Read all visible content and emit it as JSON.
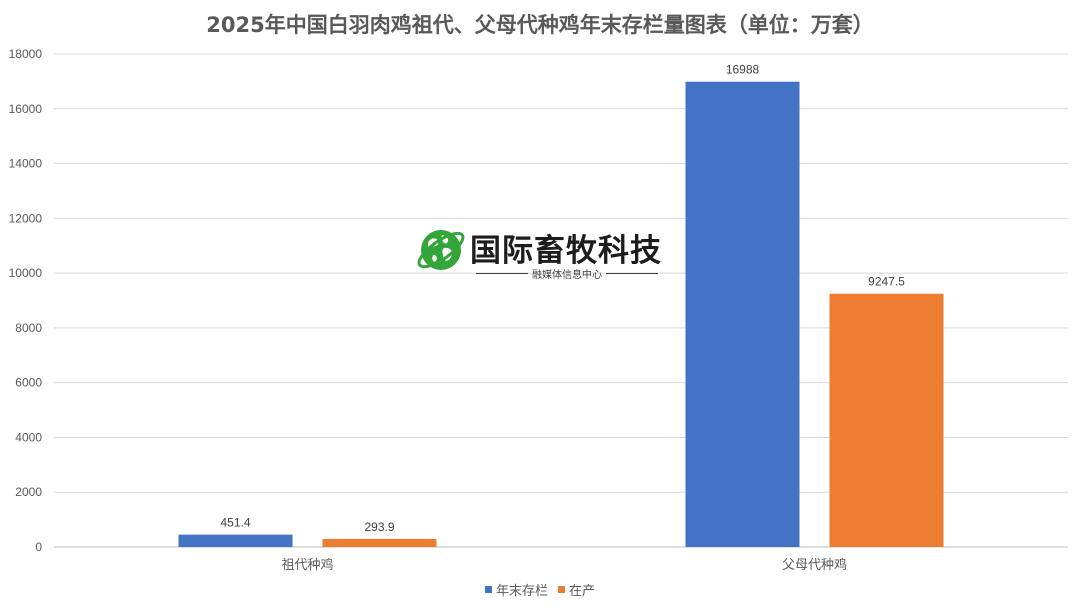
{
  "chart_data": {
    "type": "bar",
    "title": "2025年中国白羽肉鸡祖代、父母代种鸡年末存栏量图表（单位：万套）",
    "categories": [
      "祖代种鸡",
      "父母代种鸡"
    ],
    "series": [
      {
        "name": "年末存栏",
        "values": [
          451.4,
          16988
        ],
        "labels": [
          "451.4",
          "16988"
        ],
        "color": "#4472C4"
      },
      {
        "name": "在产",
        "values": [
          293.9,
          9247.5
        ],
        "labels": [
          "293.9",
          "9247.5"
        ],
        "color": "#ED7D31"
      }
    ],
    "ylim": [
      0,
      18000
    ],
    "yticks": [
      0,
      2000,
      4000,
      6000,
      8000,
      10000,
      12000,
      14000,
      16000,
      18000
    ],
    "grid": true,
    "legend_position": "bottom"
  },
  "watermark": {
    "name": "国际畜牧科技",
    "subtitle": "融媒体信息中心",
    "icon": "globe-icon",
    "color": "#2AA12E"
  }
}
